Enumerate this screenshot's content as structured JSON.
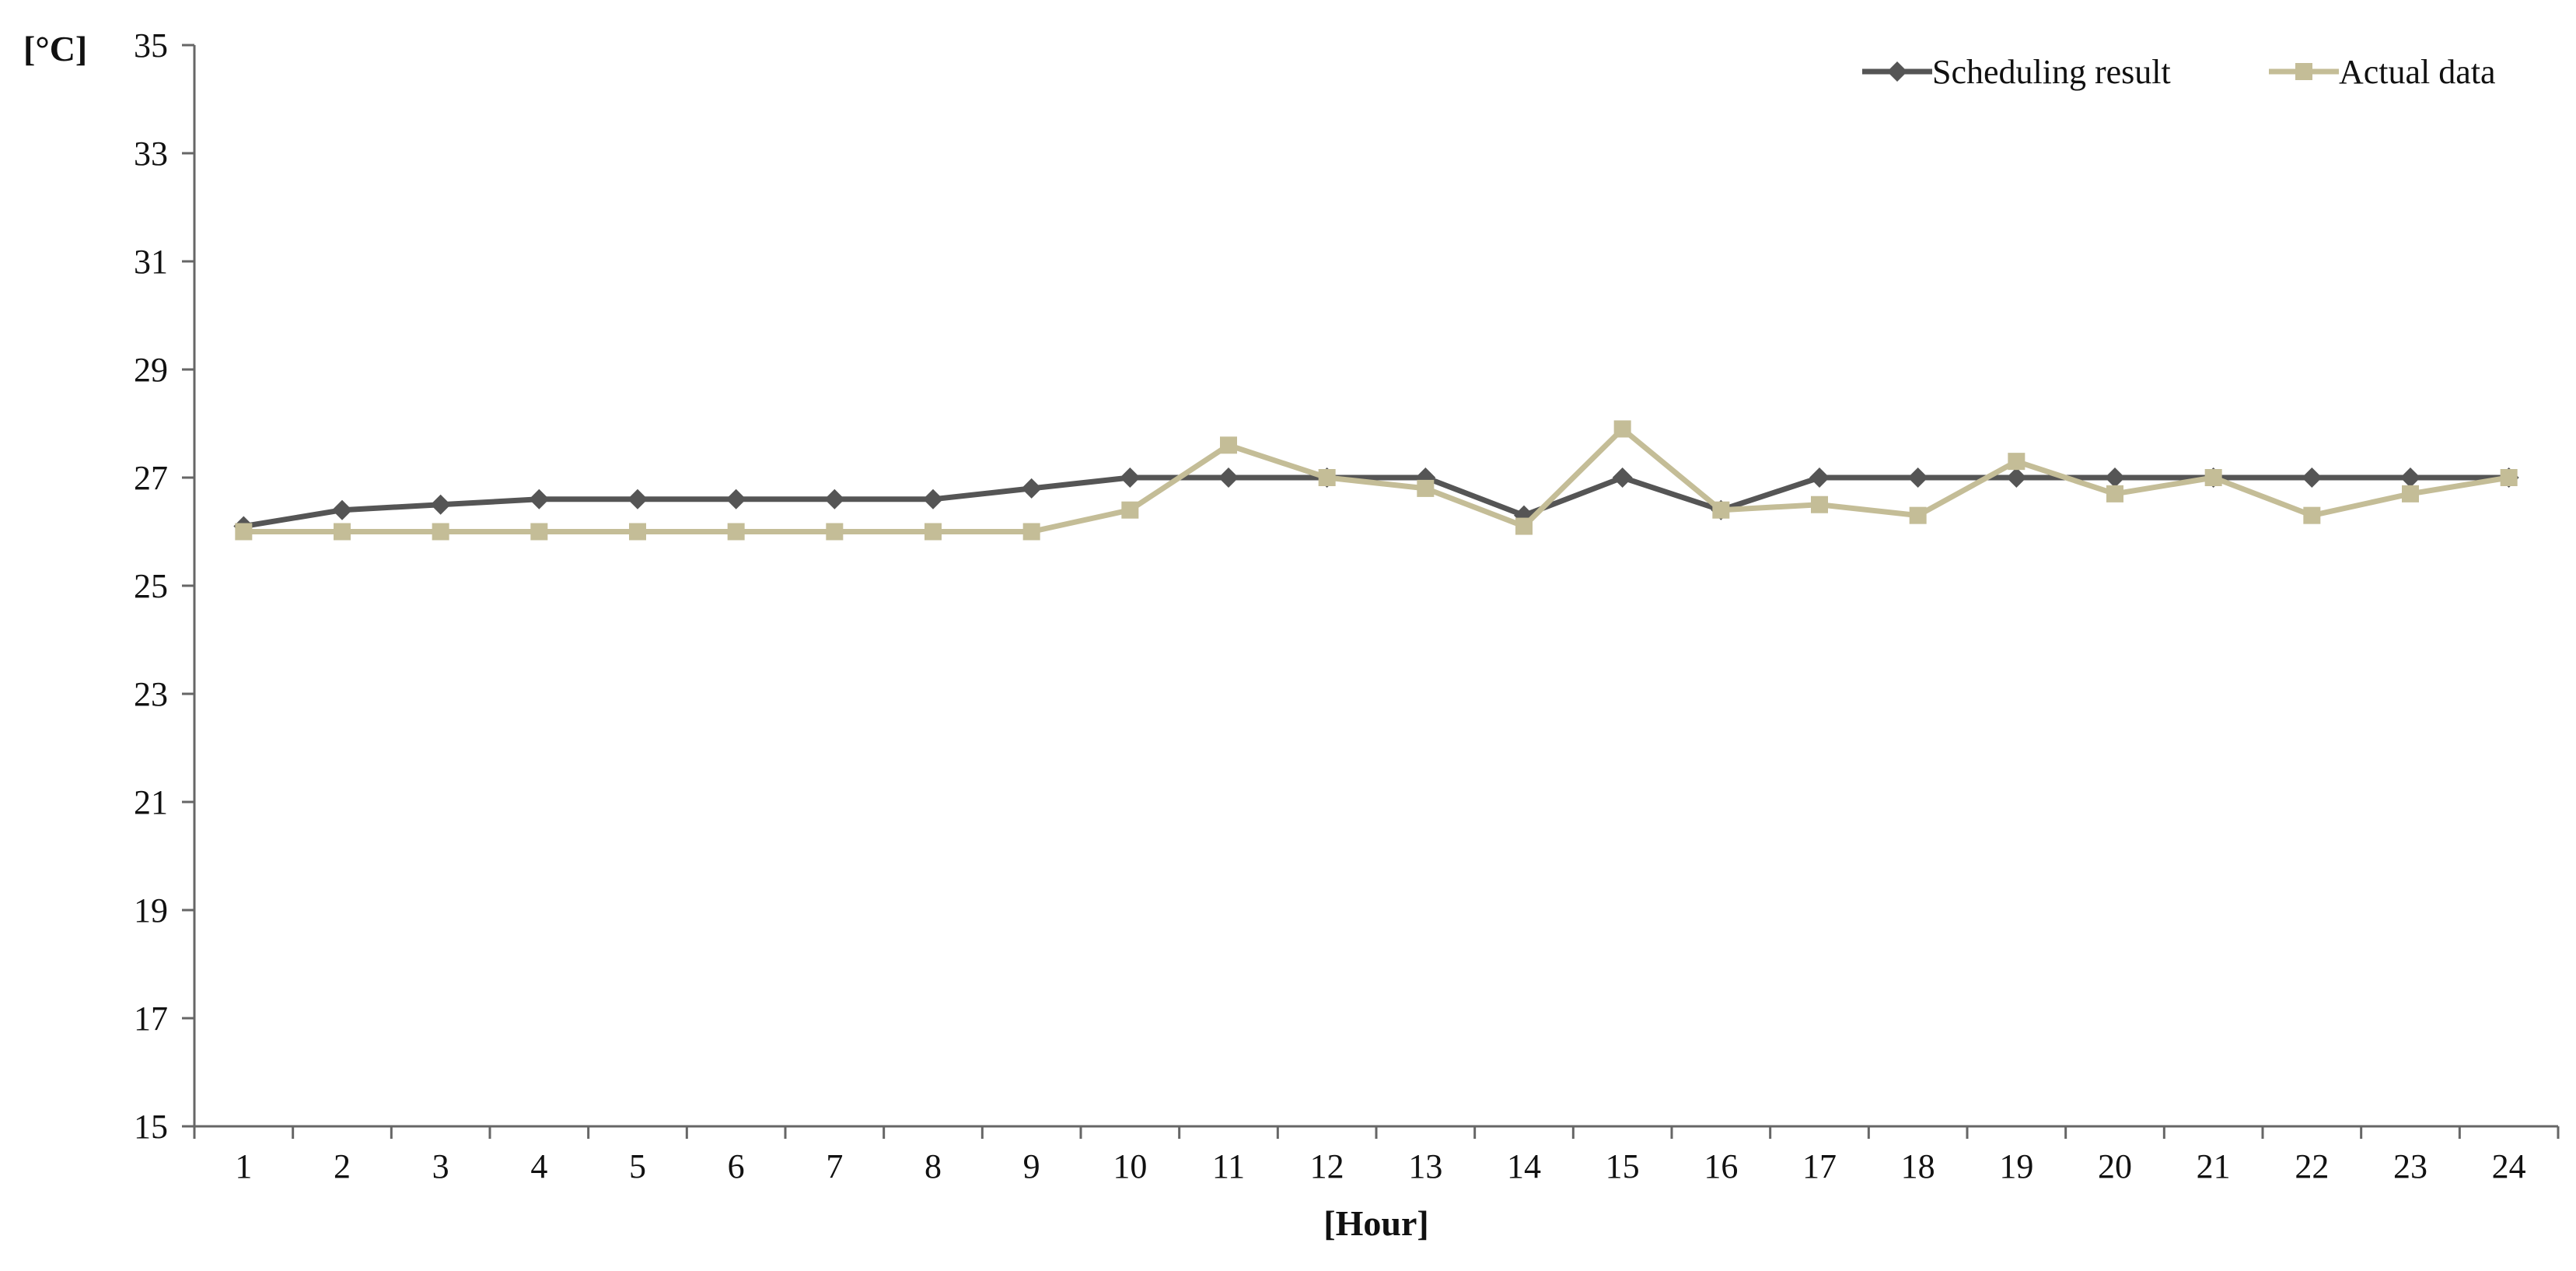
{
  "chart_data": {
    "type": "line",
    "xlabel": "[Hour]",
    "ylabel": "[°C]",
    "categories": [
      "1",
      "2",
      "3",
      "4",
      "5",
      "6",
      "7",
      "8",
      "9",
      "10",
      "11",
      "12",
      "13",
      "14",
      "15",
      "16",
      "17",
      "18",
      "19",
      "20",
      "21",
      "22",
      "23",
      "24"
    ],
    "ylim": [
      15,
      35
    ],
    "yticks": [
      15,
      17,
      19,
      21,
      23,
      25,
      27,
      29,
      31,
      33,
      35
    ],
    "grid": false,
    "legend": "top-right",
    "series": [
      {
        "name": "Scheduling result",
        "color": "#555555",
        "marker": "diamond",
        "values": [
          26.1,
          26.4,
          26.5,
          26.6,
          26.6,
          26.6,
          26.6,
          26.6,
          26.8,
          27.0,
          27.0,
          27.0,
          27.0,
          26.3,
          27.0,
          26.4,
          27.0,
          27.0,
          27.0,
          27.0,
          27.0,
          27.0,
          27.0,
          27.0
        ]
      },
      {
        "name": "Actual data",
        "color": "#c4bd97",
        "marker": "square",
        "values": [
          26.0,
          26.0,
          26.0,
          26.0,
          26.0,
          26.0,
          26.0,
          26.0,
          26.0,
          26.4,
          27.6,
          27.0,
          26.8,
          26.1,
          27.9,
          26.4,
          26.5,
          26.3,
          27.3,
          26.7,
          27.0,
          26.3,
          26.7,
          27.0
        ]
      }
    ]
  }
}
